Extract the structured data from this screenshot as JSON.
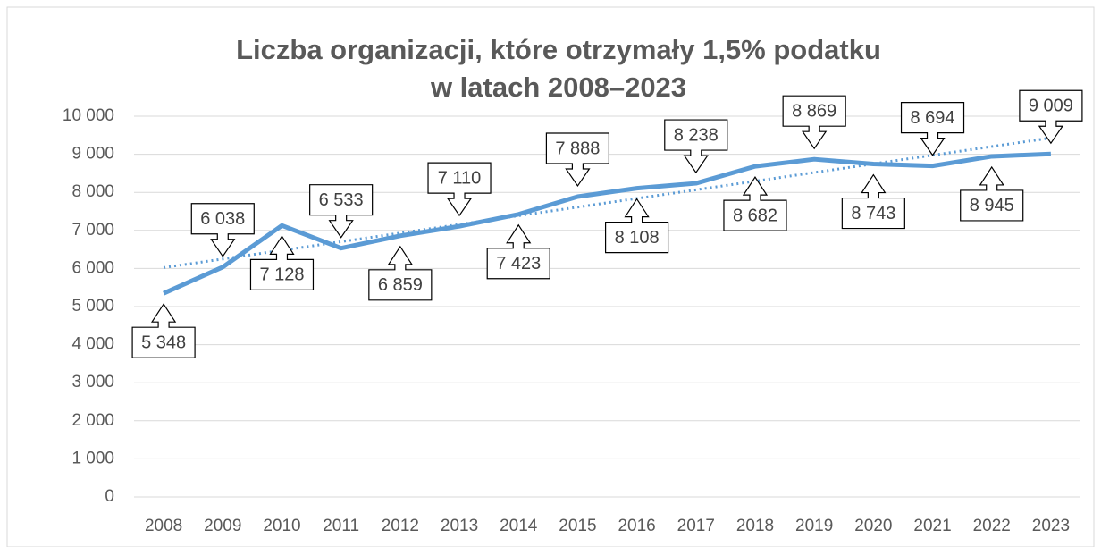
{
  "chart_data": {
    "type": "line",
    "title": [
      "Liczba organizacji, które otrzymały 1,5% podatku",
      "w latach 2008–2023"
    ],
    "categories": [
      "2008",
      "2009",
      "2010",
      "2011",
      "2012",
      "2013",
      "2014",
      "2015",
      "2016",
      "2017",
      "2018",
      "2019",
      "2020",
      "2021",
      "2022",
      "2023"
    ],
    "series": [
      {
        "color": "#5b9bd5",
        "values": [
          5348,
          6038,
          7128,
          6533,
          6859,
          7110,
          7423,
          7888,
          8108,
          8238,
          8682,
          8869,
          8743,
          8694,
          8945,
          9009
        ],
        "value_labels": [
          "5 348",
          "6 038",
          "7 128",
          "6 533",
          "6 859",
          "7 110",
          "7 423",
          "7 888",
          "8 108",
          "8 238",
          "8 682",
          "8 869",
          "8 743",
          "8 694",
          "8 945",
          "9 009"
        ]
      }
    ],
    "trendline": "linear",
    "ylim": [
      0,
      10000
    ],
    "yticks": [
      0,
      {
        "value": 1000,
        "label": "1 000"
      },
      {
        "value": 2000,
        "label": "2 000"
      },
      {
        "value": 3000,
        "label": "3 000"
      },
      {
        "value": 4000,
        "label": "4 000"
      },
      {
        "value": 5000,
        "label": "5 000"
      },
      {
        "value": 6000,
        "label": "6 000"
      },
      {
        "value": 7000,
        "label": "7 000"
      },
      {
        "value": 8000,
        "label": "8 000"
      },
      {
        "value": 9000,
        "label": "9 000"
      },
      {
        "value": 10000,
        "label": "10 000"
      }
    ],
    "grid": true
  }
}
